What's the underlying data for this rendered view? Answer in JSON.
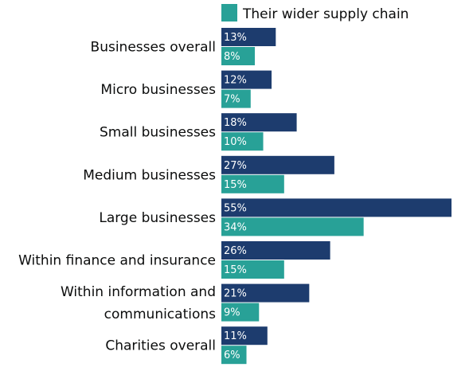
{
  "chart_data": {
    "type": "bar",
    "orientation": "horizontal",
    "title": "",
    "xlabel": "",
    "ylabel": "",
    "xlim": [
      0,
      55
    ],
    "grid": false,
    "legend_position": "top",
    "categories": [
      [
        "Businesses overall"
      ],
      [
        "Micro businesses"
      ],
      [
        "Small businesses"
      ],
      [
        "Medium businesses"
      ],
      [
        "Large businesses"
      ],
      [
        "Within finance and insurance"
      ],
      [
        "Within information and",
        "communications"
      ],
      [
        "Charities overall"
      ]
    ],
    "series": [
      {
        "color": "#1d3c6e",
        "values": [
          13,
          12,
          18,
          27,
          55,
          26,
          21,
          11
        ],
        "value_labels": [
          "13%",
          "12%",
          "18%",
          "27%",
          "55%",
          "26%",
          "21%",
          "11%"
        ]
      },
      {
        "name": "Their wider supply chain",
        "color": "#28a197",
        "values": [
          8,
          7,
          10,
          15,
          34,
          15,
          9,
          6
        ],
        "value_labels": [
          "8%",
          "7%",
          "10%",
          "15%",
          "34%",
          "15%",
          "9%",
          "6%"
        ]
      }
    ]
  }
}
